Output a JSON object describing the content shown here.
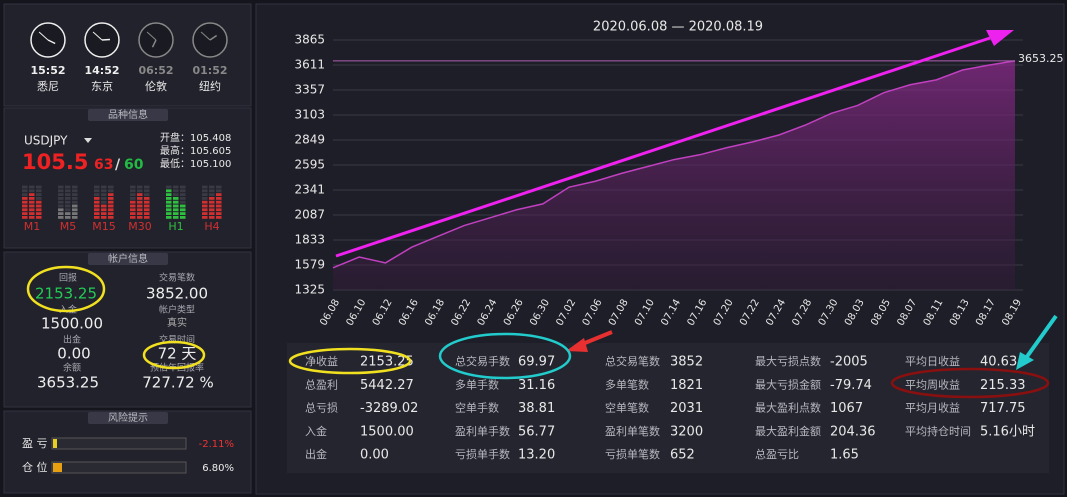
{
  "clocks": [
    {
      "time": "15:52",
      "city": "悉尼"
    },
    {
      "time": "14:52",
      "city": "东京"
    },
    {
      "time": "06:52",
      "city": "伦敦"
    },
    {
      "time": "01:52",
      "city": "纽约"
    }
  ],
  "symbol_panel": {
    "header": "品种信息",
    "symbol": "USDJPY",
    "price_main": "105.5",
    "price_bid": "63",
    "separator": "/",
    "price_ask": "60",
    "open": "开盘：105.408",
    "high": "最高：105.605",
    "low": "最低：105.100",
    "timeframes": [
      "M1",
      "M5",
      "M15",
      "M30",
      "H1",
      "H4"
    ]
  },
  "account_panel": {
    "header": "帐户信息",
    "fields": [
      {
        "label": "回报",
        "value": "2153.25"
      },
      {
        "label": "交易笔数",
        "value": "3852.00"
      },
      {
        "label": "入金",
        "value": "1500.00"
      },
      {
        "label": "帐户类型",
        "value": "真实"
      },
      {
        "label": "出金",
        "value": "0.00"
      },
      {
        "label": "交易时间",
        "value": "72 天"
      },
      {
        "label": "余额",
        "value": "3653.25"
      },
      {
        "label": "预估年回报率",
        "value": "727.72 %"
      }
    ]
  },
  "risk_panel": {
    "header": "风险提示",
    "rows": [
      {
        "label": "盈 亏",
        "value": "-2.11%"
      },
      {
        "label": "仓 位",
        "value": "6.80%"
      }
    ]
  },
  "chart_data": {
    "type": "line",
    "title": "2020.06.08 — 2020.08.19",
    "categories": [
      "06.08",
      "06.10",
      "06.12",
      "06.16",
      "06.18",
      "06.22",
      "06.24",
      "06.26",
      "06.30",
      "07.02",
      "07.06",
      "07.08",
      "07.10",
      "07.14",
      "07.16",
      "07.20",
      "07.22",
      "07.24",
      "07.28",
      "07.30",
      "08.03",
      "08.05",
      "08.07",
      "08.11",
      "08.13",
      "08.17",
      "08.19"
    ],
    "values": [
      1550,
      1660,
      1600,
      1760,
      1870,
      1980,
      2060,
      2140,
      2200,
      2370,
      2430,
      2510,
      2580,
      2650,
      2700,
      2770,
      2830,
      2900,
      3000,
      3120,
      3200,
      3330,
      3410,
      3460,
      3560,
      3610,
      3653.25
    ],
    "color": "#c040c0",
    "ylim": [
      1325,
      3865
    ],
    "yticks": [
      1325,
      1579,
      1833,
      2087,
      2341,
      2595,
      2849,
      3103,
      3357,
      3611,
      3865
    ],
    "grid": true
  },
  "stats": {
    "columns": [
      [
        {
          "label": "净收益",
          "value": "2153.25"
        },
        {
          "label": "总盈利",
          "value": "5442.27"
        },
        {
          "label": "总亏损",
          "value": "-3289.02"
        },
        {
          "label": "入金",
          "value": "1500.00"
        },
        {
          "label": "出金",
          "value": "0.00"
        }
      ],
      [
        {
          "label": "总交易手数",
          "value": "69.97"
        },
        {
          "label": "多单手数",
          "value": "31.16"
        },
        {
          "label": "空单手数",
          "value": "38.81"
        },
        {
          "label": "盈利单手数",
          "value": "56.77"
        },
        {
          "label": "亏损单手数",
          "value": "13.20"
        }
      ],
      [
        {
          "label": "总交易笔数",
          "value": "3852"
        },
        {
          "label": "多单笔数",
          "value": "1821"
        },
        {
          "label": "空单笔数",
          "value": "2031"
        },
        {
          "label": "盈利单笔数",
          "value": "3200"
        },
        {
          "label": "亏损单笔数",
          "value": "652"
        }
      ],
      [
        {
          "label": "最大亏损点数",
          "value": "-2005"
        },
        {
          "label": "最大亏损金额",
          "value": "-79.74"
        },
        {
          "label": "最大盈利点数",
          "value": "1067"
        },
        {
          "label": "最大盈利金额",
          "value": "204.36"
        },
        {
          "label": "总盈亏比",
          "value": "1.65"
        }
      ],
      [
        {
          "label": "平均日收益",
          "value": "40.63"
        },
        {
          "label": "平均周收益",
          "value": "215.33"
        },
        {
          "label": "平均月收益",
          "value": "717.75"
        },
        {
          "label": "平均持仓时间",
          "value": "5.16小时"
        }
      ]
    ]
  }
}
